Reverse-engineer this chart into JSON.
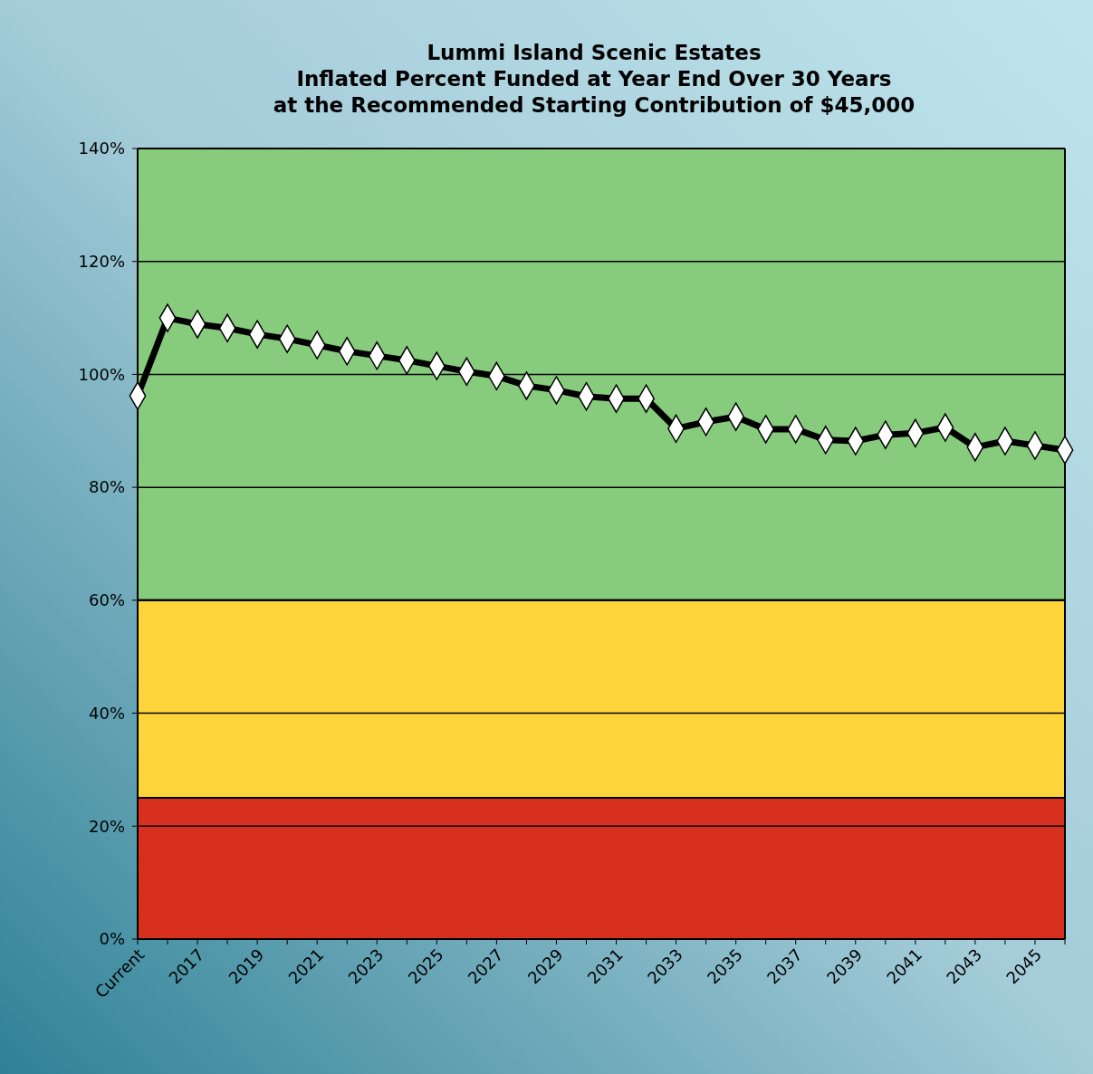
{
  "chart_data": {
    "type": "line",
    "title": "Lummi Island Scenic Estates\nInflated Percent Funded at Year End Over 30 Years\nat the Recommended Starting Contribution of  $45,000",
    "categories": [
      "Current",
      null,
      "2017",
      null,
      "2019",
      null,
      "2021",
      null,
      "2023",
      null,
      "2025",
      null,
      "2027",
      null,
      "2029",
      null,
      "2031",
      null,
      "2033",
      null,
      "2035",
      null,
      "2037",
      null,
      "2039",
      null,
      "2041",
      null,
      "2043",
      null,
      "2045",
      null
    ],
    "series": [
      {
        "color": "#000000",
        "values": [
          96.2,
          110.0,
          108.9,
          108.2,
          107.1,
          106.3,
          105.2,
          104.1,
          103.3,
          102.5,
          101.5,
          100.5,
          99.7,
          98.0,
          97.2,
          96.1,
          95.7,
          95.7,
          90.4,
          91.6,
          92.5,
          90.3,
          90.3,
          88.4,
          88.2,
          89.3,
          89.6,
          90.6,
          87.1,
          88.2,
          87.4,
          86.6
        ]
      }
    ],
    "ylim": [
      0,
      140
    ],
    "yticks": [
      {
        "value": 0,
        "label": "0%"
      },
      {
        "value": 20,
        "label": "20%"
      },
      {
        "value": 40,
        "label": "40%"
      },
      {
        "value": 60,
        "label": "60%"
      },
      {
        "value": 80,
        "label": "80%"
      },
      {
        "value": 100,
        "label": "100%"
      },
      {
        "value": 120,
        "label": "120%"
      },
      {
        "value": 140,
        "label": "140%"
      }
    ],
    "bands": [
      {
        "axis": "y",
        "from": 0,
        "to": 25,
        "color": "#d7301e"
      },
      {
        "axis": "y",
        "from": 25,
        "to": 60,
        "color": "#fdd43a"
      },
      {
        "axis": "y",
        "from": 60,
        "to": 140,
        "color": "#86cc7c"
      }
    ],
    "grid": "y",
    "marker": "diamond",
    "line_style": "solid"
  }
}
